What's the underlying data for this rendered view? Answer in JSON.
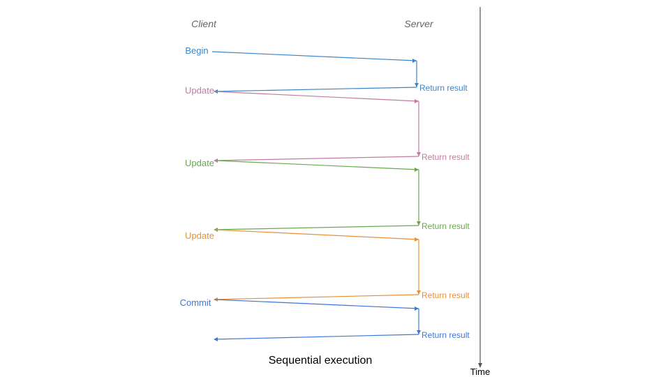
{
  "headers": {
    "client": "Client",
    "server": "Server"
  },
  "title": "Sequential execution",
  "time_axis": {
    "label": "Time",
    "color": "#555555"
  },
  "exchanges": [
    {
      "request": "Begin",
      "response": "Return result",
      "color": "#3d85c6"
    },
    {
      "request": "Update",
      "response": "Return result",
      "color": "#c27ba0"
    },
    {
      "request": "Update",
      "response": "Return result",
      "color": "#6aa84f"
    },
    {
      "request": "Update",
      "response": "Return result",
      "color": "#e69138"
    },
    {
      "request": "Commit",
      "response": "Return result",
      "color": "#3c78d8"
    }
  ]
}
